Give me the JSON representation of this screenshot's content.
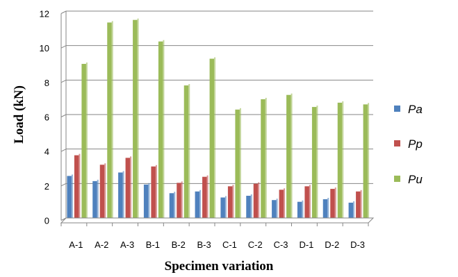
{
  "chart_data": {
    "type": "bar",
    "title": "",
    "xlabel": "Specimen variation",
    "ylabel": "Load (kN)",
    "ylim": [
      0,
      12
    ],
    "yticks": [
      0,
      2,
      4,
      6,
      8,
      10,
      12
    ],
    "grid": true,
    "legend_position": "right",
    "categories": [
      "A-1",
      "A-2",
      "A-3",
      "B-1",
      "B-2",
      "B-3",
      "C-1",
      "C-2",
      "C-3",
      "D-1",
      "D-2",
      "D-3"
    ],
    "series": [
      {
        "name": "Pa",
        "color": "#4F81BD",
        "values": [
          2.6,
          2.3,
          2.8,
          2.1,
          1.6,
          1.7,
          1.35,
          1.45,
          1.2,
          1.1,
          1.25,
          1.05
        ]
      },
      {
        "name": "Pp",
        "color": "#C0504D",
        "values": [
          3.8,
          3.25,
          3.65,
          3.15,
          2.2,
          2.55,
          2.0,
          2.15,
          1.8,
          2.0,
          1.85,
          1.7
        ]
      },
      {
        "name": "Pu",
        "color": "#9BBB59",
        "values": [
          9.1,
          11.5,
          11.65,
          10.4,
          7.85,
          9.4,
          6.45,
          7.05,
          7.3,
          6.6,
          6.85,
          6.75
        ]
      }
    ]
  }
}
